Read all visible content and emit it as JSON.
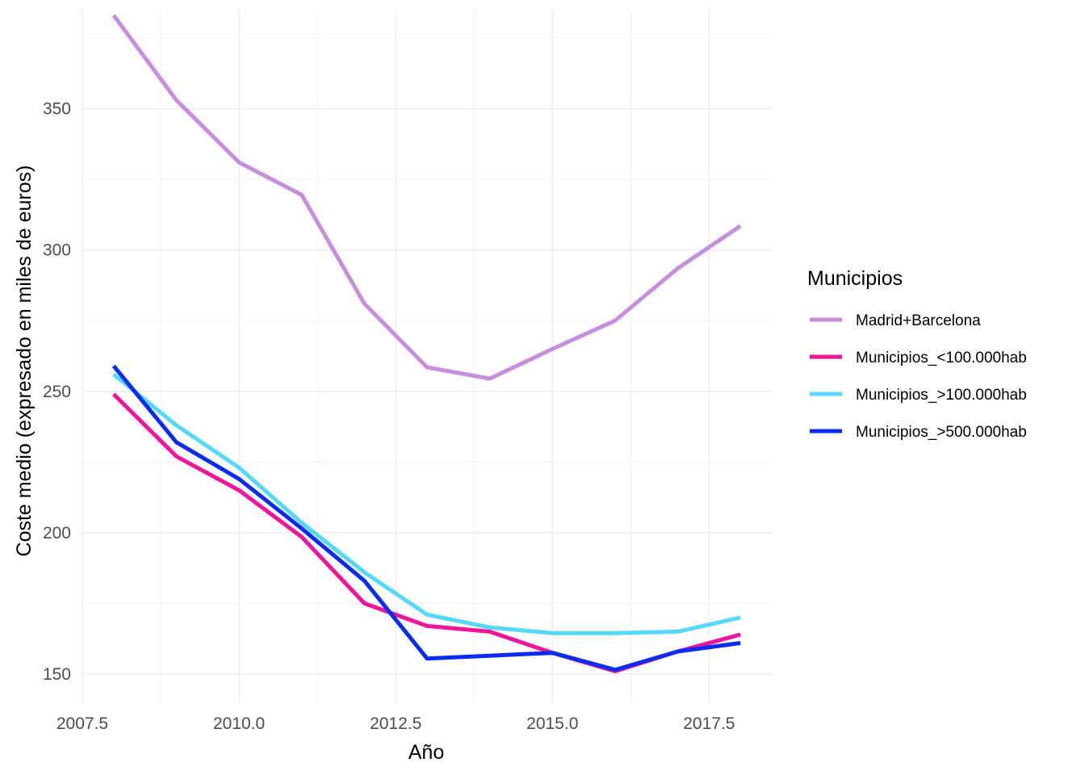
{
  "chart_data": {
    "type": "line",
    "xlabel": "Año",
    "ylabel": "Coste medio (expresado en miles de euros)",
    "xlim": [
      2007.5,
      2018.5
    ],
    "ylim": [
      140,
      385
    ],
    "x_ticks": [
      2007.5,
      2010.0,
      2012.5,
      2015.0,
      2017.5
    ],
    "x_tick_labels": [
      "2007.5",
      "2010.0",
      "2012.5",
      "2015.0",
      "2017.5"
    ],
    "y_ticks": [
      150,
      200,
      250,
      300,
      350
    ],
    "y_tick_labels": [
      "150",
      "200",
      "250",
      "300",
      "350"
    ],
    "grid": true,
    "legend": {
      "title": "Municipios",
      "position": "right"
    },
    "x": [
      2008,
      2009,
      2010,
      2011,
      2012,
      2013,
      2014,
      2015,
      2016,
      2017,
      2018
    ],
    "series": [
      {
        "name": "Madrid+Barcelona",
        "color": "#c78ee0",
        "values": [
          383,
          353,
          331,
          319.5,
          281,
          258.5,
          254.5,
          265,
          275,
          293.5,
          308.5
        ]
      },
      {
        "name": "Municipios_<100.000hab",
        "color": "#f0149b",
        "values": [
          249,
          227,
          215,
          198.5,
          175,
          167,
          165,
          157.5,
          151,
          158,
          164
        ]
      },
      {
        "name": "Municipios_>100.000hab",
        "color": "#54d8fb",
        "values": [
          256,
          238,
          223,
          203.5,
          186,
          171,
          166.5,
          164.5,
          164.5,
          165,
          170
        ]
      },
      {
        "name": "Municipios_>500.000hab",
        "color": "#0a2cf0",
        "values": [
          259,
          232,
          219,
          201.5,
          183,
          155.5,
          156.5,
          157.5,
          151.5,
          158,
          161
        ]
      }
    ]
  }
}
